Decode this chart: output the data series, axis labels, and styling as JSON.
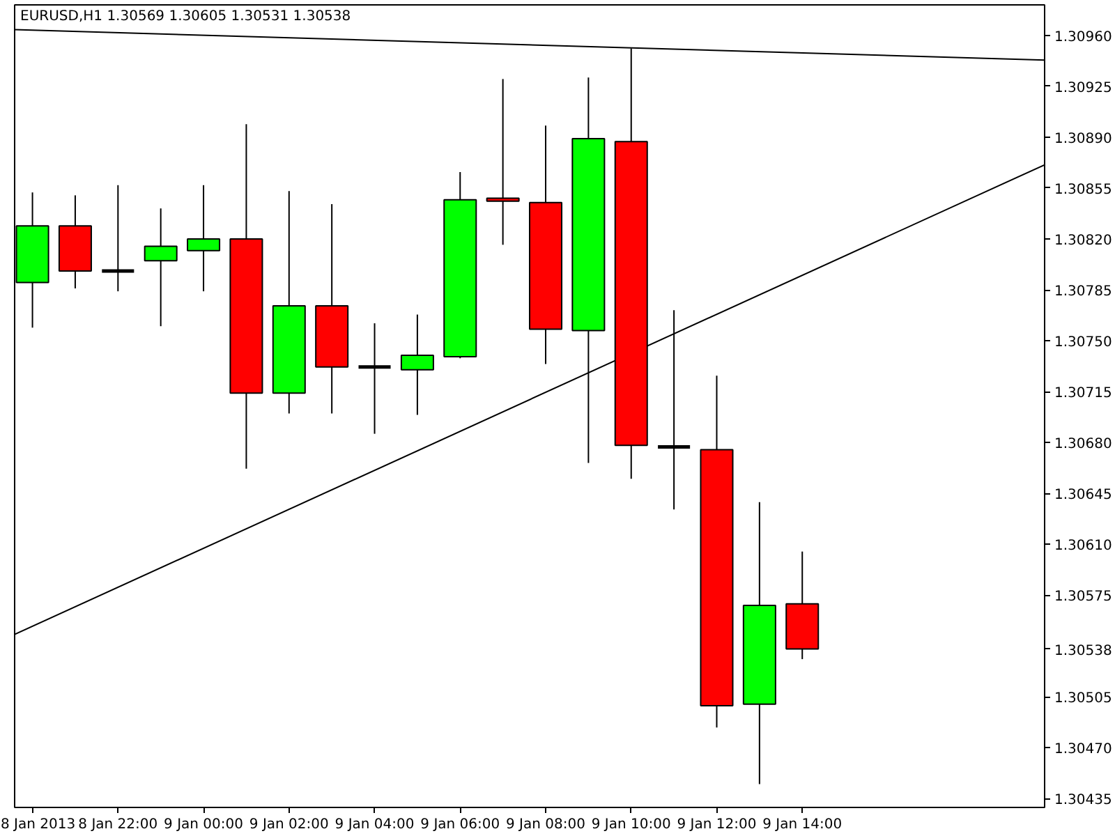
{
  "chart_data": {
    "type": "candlestick",
    "title": "EURUSD,H1 1.30569 1.30605 1.30531 1.30538",
    "xlim": [
      "2013-01-08T19:35",
      "2013-01-09T19:40"
    ],
    "xticks": [
      {
        "value": "2013-01-08T20:00",
        "label": "8 Jan 2013"
      },
      {
        "value": "2013-01-08T22:00",
        "label": "8 Jan 22:00"
      },
      {
        "value": "2013-01-09T00:00",
        "label": "9 Jan 00:00"
      },
      {
        "value": "2013-01-09T02:00",
        "label": "9 Jan 02:00"
      },
      {
        "value": "2013-01-09T04:00",
        "label": "9 Jan 04:00"
      },
      {
        "value": "2013-01-09T06:00",
        "label": "9 Jan 06:00"
      },
      {
        "value": "2013-01-09T08:00",
        "label": "9 Jan 08:00"
      },
      {
        "value": "2013-01-09T10:00",
        "label": "9 Jan 10:00"
      },
      {
        "value": "2013-01-09T12:00",
        "label": "9 Jan 12:00"
      },
      {
        "value": "2013-01-09T14:00",
        "label": "9 Jan 14:00"
      }
    ],
    "ylim": [
      1.30429,
      1.30981
    ],
    "yticks": [
      1.30435,
      {
        "value": 1.3047,
        "label": "1.30470"
      },
      1.30505,
      1.30538,
      1.30575,
      {
        "value": 1.3061,
        "label": "1.30610"
      },
      1.30645,
      {
        "value": 1.3068,
        "label": "1.30680"
      },
      1.30715,
      {
        "value": 1.3075,
        "label": "1.30750"
      },
      1.30785,
      {
        "value": 1.3082,
        "label": "1.30820"
      },
      1.30855,
      {
        "value": 1.3089,
        "label": "1.30890"
      },
      1.30925,
      {
        "value": 1.3096,
        "label": "1.30960"
      }
    ],
    "series": [
      {
        "x": [
          "2013-01-08T20:00",
          "2013-01-08T21:00",
          "2013-01-08T22:00",
          "2013-01-08T23:00",
          "2013-01-09T00:00",
          "2013-01-09T01:00",
          "2013-01-09T02:00",
          "2013-01-09T03:00",
          "2013-01-09T04:00",
          "2013-01-09T05:00",
          "2013-01-09T06:00",
          "2013-01-09T07:00",
          "2013-01-09T08:00",
          "2013-01-09T09:00",
          "2013-01-09T10:00",
          "2013-01-09T11:00",
          "2013-01-09T12:00",
          "2013-01-09T13:00",
          "2013-01-09T14:00"
        ],
        "ohlc": [
          [
            1.3079,
            1.30852,
            1.30759,
            1.30829
          ],
          [
            1.30829,
            1.3085,
            1.30786,
            1.30798
          ],
          [
            1.30798,
            1.30857,
            1.30784,
            1.30798
          ],
          [
            1.30805,
            1.30841,
            1.3076,
            1.30815
          ],
          [
            1.30812,
            1.30857,
            1.30784,
            1.3082
          ],
          [
            1.3082,
            1.30899,
            1.30662,
            1.30714
          ],
          [
            1.30714,
            1.30853,
            1.307,
            1.30774
          ],
          [
            1.30774,
            1.30844,
            1.307,
            1.30732
          ],
          [
            1.30732,
            1.30762,
            1.30686,
            1.30732
          ],
          [
            1.3073,
            1.30768,
            1.30699,
            1.3074
          ],
          [
            1.30739,
            1.30866,
            1.30738,
            1.30847
          ],
          [
            1.30848,
            1.3093,
            1.30816,
            1.30846
          ],
          [
            1.30845,
            1.30898,
            1.30734,
            1.30758
          ],
          [
            1.30757,
            1.30931,
            1.30666,
            1.30889
          ],
          [
            1.30887,
            1.30951,
            1.30655,
            1.30678
          ],
          [
            1.30677,
            1.30771,
            1.30634,
            1.30677
          ],
          [
            1.30675,
            1.30726,
            1.30484,
            1.30499
          ],
          [
            1.305,
            1.30639,
            1.30445,
            1.30568
          ],
          [
            1.30569,
            1.30605,
            1.30531,
            1.30538
          ]
        ],
        "colors": [
          "#00ff00",
          "#ff0000",
          "#000000",
          "#00ff00",
          "#00ff00",
          "#ff0000",
          "#00ff00",
          "#ff0000",
          "#000000",
          "#00ff00",
          "#00ff00",
          "#ff0000",
          "#ff0000",
          "#00ff00",
          "#ff0000",
          "#000000",
          "#ff0000",
          "#00ff00",
          "#ff0000"
        ]
      },
      {
        "type": "line",
        "color": "#000000",
        "x": [
          "2013-01-08T19:35",
          "2013-01-09T19:40"
        ],
        "values": [
          1.30964,
          1.30943
        ]
      },
      {
        "type": "line",
        "color": "#000000",
        "x": [
          "2013-01-08T19:35",
          "2013-01-09T19:40"
        ],
        "values": [
          1.30548,
          1.30871
        ]
      }
    ]
  }
}
